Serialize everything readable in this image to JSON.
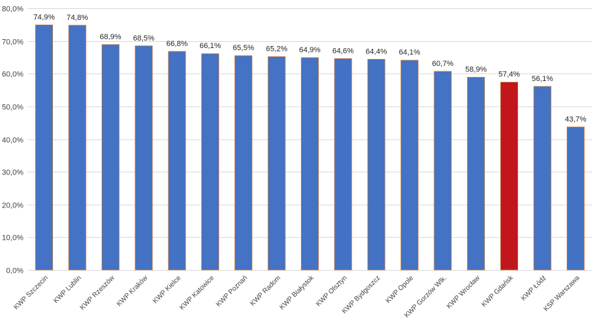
{
  "chart_data": {
    "type": "bar",
    "categories": [
      "KWP Szczecin",
      "KWP Lublin",
      "KWP Rzeszów",
      "KWP Kraków",
      "KWP Kielce",
      "KWP Katowice",
      "KWP Poznań",
      "KWP Radom",
      "KWP Białystok",
      "KWP Olsztyn",
      "KWP Bydgoszcz",
      "KWP Opole",
      "KWP Gorzów Wlk.",
      "KWP Wrocław",
      "KWP Gdańsk",
      "KWP Łódź",
      "KSP Warszawa"
    ],
    "values": [
      74.9,
      74.8,
      68.9,
      68.5,
      66.8,
      66.1,
      65.5,
      65.2,
      64.9,
      64.6,
      64.4,
      64.1,
      60.7,
      58.9,
      57.4,
      56.1,
      43.7
    ],
    "data_labels": [
      "74,9%",
      "74,8%",
      "68,9%",
      "68,5%",
      "66,8%",
      "66,1%",
      "65,5%",
      "65,2%",
      "64,9%",
      "64,6%",
      "64,4%",
      "64,1%",
      "60,7%",
      "58,9%",
      "57,4%",
      "56,1%",
      "43,7%"
    ],
    "ylim": [
      0,
      80
    ],
    "y_ticks": [
      0,
      10,
      20,
      30,
      40,
      50,
      60,
      70,
      80
    ],
    "y_tick_labels": [
      "0,0%",
      "10,0%",
      "20,0%",
      "30,0%",
      "40,0%",
      "50,0%",
      "60,0%",
      "70,0%",
      "80,0%"
    ],
    "grid": true,
    "legend": "none",
    "bar_color": "#4472c4",
    "bar_border_color": "#c0763c",
    "highlight_index": 14,
    "highlight_color": "#c0161c"
  }
}
